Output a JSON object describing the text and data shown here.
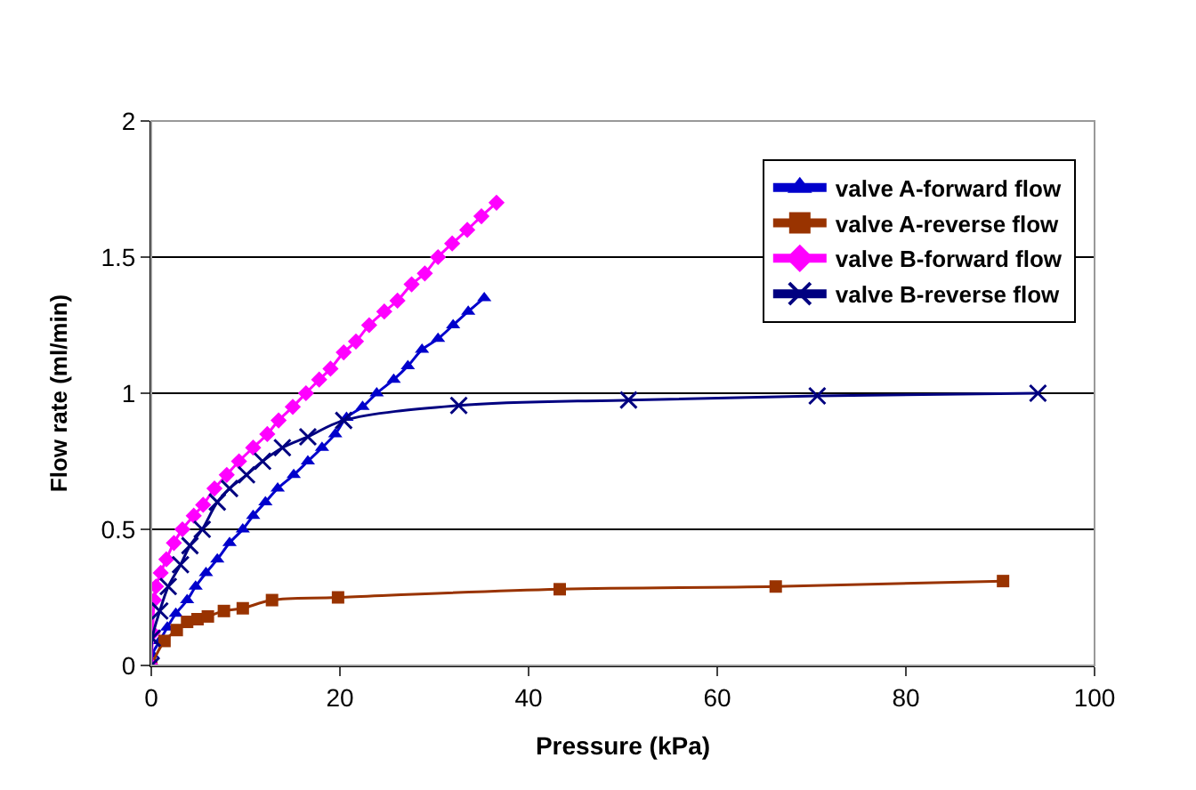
{
  "chart_data": {
    "type": "line",
    "xlabel": "Pressure (kPa)",
    "ylabel": "Flow rate (ml/min)",
    "xlim": [
      0,
      100
    ],
    "xticks": [
      0,
      20,
      40,
      60,
      80,
      100
    ],
    "ylim": [
      0,
      2
    ],
    "yticks": [
      0,
      0.5,
      1,
      1.5,
      2
    ],
    "grid": "y",
    "legend": "top right",
    "series": [
      {
        "name": "valve A-forward flow",
        "color": "#0000cc",
        "marker": "triangle",
        "x": [
          0,
          0.1,
          0.9,
          1.7,
          2.6,
          3.8,
          4.7,
          5.8,
          7.0,
          8.3,
          9.7,
          10.8,
          12.1,
          13.4,
          15.1,
          16.6,
          18.1,
          19.5,
          20.7,
          22.4,
          23.9,
          25.7,
          27.2,
          28.7,
          30.4,
          32.0,
          33.6,
          35.3
        ],
        "values": [
          0,
          0.04,
          0.09,
          0.14,
          0.19,
          0.24,
          0.29,
          0.34,
          0.39,
          0.45,
          0.5,
          0.55,
          0.6,
          0.65,
          0.7,
          0.75,
          0.8,
          0.85,
          0.91,
          0.95,
          1.0,
          1.05,
          1.1,
          1.16,
          1.2,
          1.25,
          1.3,
          1.35
        ]
      },
      {
        "name": "valve A-reverse flow",
        "color": "#993300",
        "marker": "square",
        "x": [
          0,
          1.4,
          2.7,
          3.8,
          4.9,
          6.0,
          7.7,
          9.7,
          12.8,
          19.8,
          43.3,
          66.2,
          90.3
        ],
        "values": [
          0,
          0.09,
          0.13,
          0.16,
          0.17,
          0.18,
          0.2,
          0.21,
          0.24,
          0.25,
          0.28,
          0.29,
          0.31
        ]
      },
      {
        "name": "valve B-forward flow",
        "color": "#ff00ff",
        "marker": "diamond",
        "x": [
          0,
          0.15,
          0.3,
          0.5,
          1.0,
          1.6,
          2.4,
          3.3,
          4.5,
          5.5,
          6.7,
          8.0,
          9.3,
          10.8,
          12.3,
          13.5,
          15.0,
          16.4,
          17.8,
          19.0,
          20.4,
          21.7,
          23.1,
          24.7,
          26.1,
          27.6,
          29.0,
          30.4,
          31.9,
          33.5,
          35.0,
          36.6
        ],
        "values": [
          0,
          0.12,
          0.24,
          0.29,
          0.34,
          0.39,
          0.45,
          0.5,
          0.55,
          0.59,
          0.65,
          0.7,
          0.75,
          0.8,
          0.85,
          0.9,
          0.95,
          1.0,
          1.05,
          1.09,
          1.15,
          1.19,
          1.25,
          1.3,
          1.34,
          1.4,
          1.44,
          1.5,
          1.55,
          1.6,
          1.65,
          1.7
        ]
      },
      {
        "name": "valve B-reverse flow",
        "color": "#000080",
        "marker": "cross",
        "x": [
          0,
          0.1,
          0.9,
          1.8,
          3.1,
          4.1,
          5.4,
          7.0,
          8.3,
          10.1,
          11.8,
          13.9,
          16.6,
          20.4,
          32.6,
          50.6,
          70.6,
          94.0
        ],
        "values": [
          0,
          0.1,
          0.2,
          0.29,
          0.37,
          0.44,
          0.5,
          0.6,
          0.65,
          0.7,
          0.75,
          0.8,
          0.84,
          0.9,
          0.955,
          0.975,
          0.99,
          1.0
        ]
      }
    ]
  }
}
